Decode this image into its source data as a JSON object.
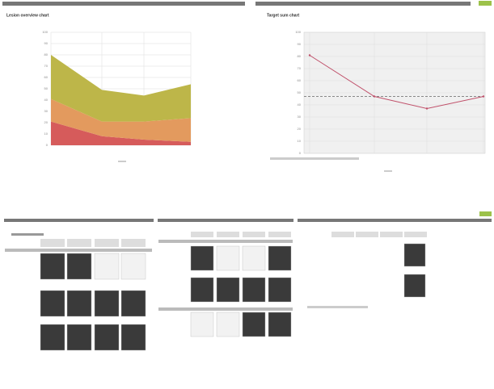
{
  "chart_data": [
    {
      "type": "stacked-area",
      "title": "Lesion overview chart",
      "ylim": [
        0,
        100
      ],
      "yticks": [
        0,
        10,
        20,
        30,
        40,
        50,
        60,
        70,
        80,
        90,
        100
      ],
      "grid": true,
      "series": [
        {
          "color": "#d65b5b",
          "values": [
            21,
            8,
            5,
            3
          ]
        },
        {
          "color": "#e39a5e",
          "values": [
            20,
            13,
            16,
            21
          ]
        },
        {
          "color": "#bdb649",
          "values": [
            39,
            28,
            23,
            30
          ]
        }
      ]
    },
    {
      "type": "line",
      "title": "Target sum chart",
      "ylim": [
        0,
        100
      ],
      "yticks": [
        0,
        10,
        20,
        30,
        40,
        50,
        60,
        70,
        80,
        90,
        100
      ],
      "grid": true,
      "color": "#c0506a",
      "values": [
        81,
        47,
        37,
        47
      ],
      "reference": 47
    }
  ]
}
